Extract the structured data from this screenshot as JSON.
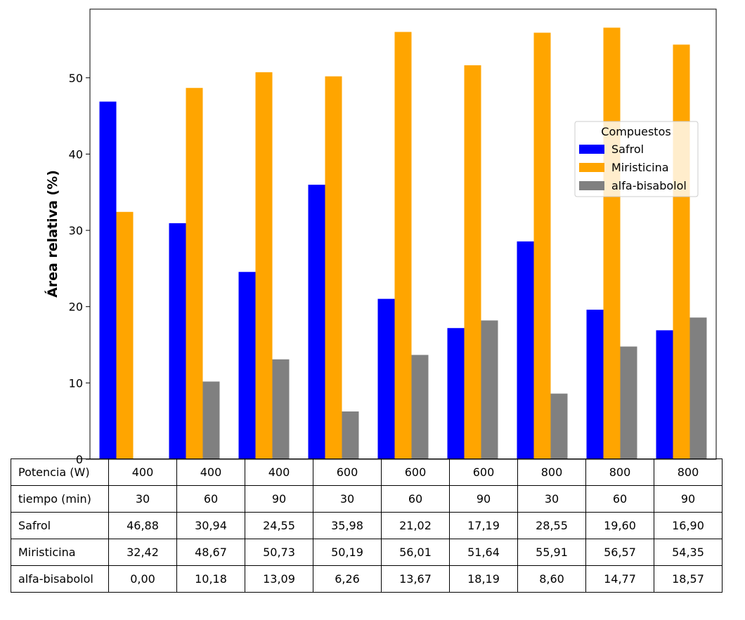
{
  "chart_data": {
    "type": "bar",
    "ylabel": "Área relativa (%)",
    "xlabel": "",
    "title": "",
    "ylim": [
      0,
      59
    ],
    "yticks": [
      0,
      10,
      20,
      30,
      40,
      50
    ],
    "grid": false,
    "categories": [
      "400 / 30",
      "400 / 60",
      "400 / 90",
      "600 / 30",
      "600 / 60",
      "600 / 90",
      "800 / 30",
      "800 / 60",
      "800 / 90"
    ],
    "series": [
      {
        "name": "Safrol",
        "color": "#0000ff",
        "values": [
          46.88,
          30.94,
          24.55,
          35.98,
          21.02,
          17.19,
          28.55,
          19.6,
          16.9
        ]
      },
      {
        "name": "Miristicina",
        "color": "#ffa500",
        "values": [
          32.42,
          48.67,
          50.73,
          50.19,
          56.01,
          51.64,
          55.91,
          56.57,
          54.35
        ]
      },
      {
        "name": "alfa-bisabolol",
        "color": "#808080",
        "values": [
          0.0,
          10.18,
          13.09,
          6.26,
          13.67,
          18.19,
          8.6,
          14.77,
          18.57
        ]
      }
    ],
    "legend": {
      "title": "Compuestos",
      "placement": "center-right"
    }
  },
  "table": {
    "rows": [
      {
        "label": "Potencia (W)",
        "cells": [
          "400",
          "400",
          "400",
          "600",
          "600",
          "600",
          "800",
          "800",
          "800"
        ]
      },
      {
        "label": "tiempo (min)",
        "cells": [
          "30",
          "60",
          "90",
          "30",
          "60",
          "90",
          "30",
          "60",
          "90"
        ]
      },
      {
        "label": "Safrol",
        "cells": [
          "46,88",
          "30,94",
          "24,55",
          "35,98",
          "21,02",
          "17,19",
          "28,55",
          "19,60",
          "16,90"
        ]
      },
      {
        "label": "Miristicina",
        "cells": [
          "32,42",
          "48,67",
          "50,73",
          "50,19",
          "56,01",
          "51,64",
          "55,91",
          "56,57",
          "54,35"
        ]
      },
      {
        "label": "alfa-bisabolol",
        "cells": [
          "0,00",
          "10,18",
          "13,09",
          "6,26",
          "13,67",
          "18,19",
          "8,60",
          "14,77",
          "18,57"
        ]
      }
    ]
  }
}
